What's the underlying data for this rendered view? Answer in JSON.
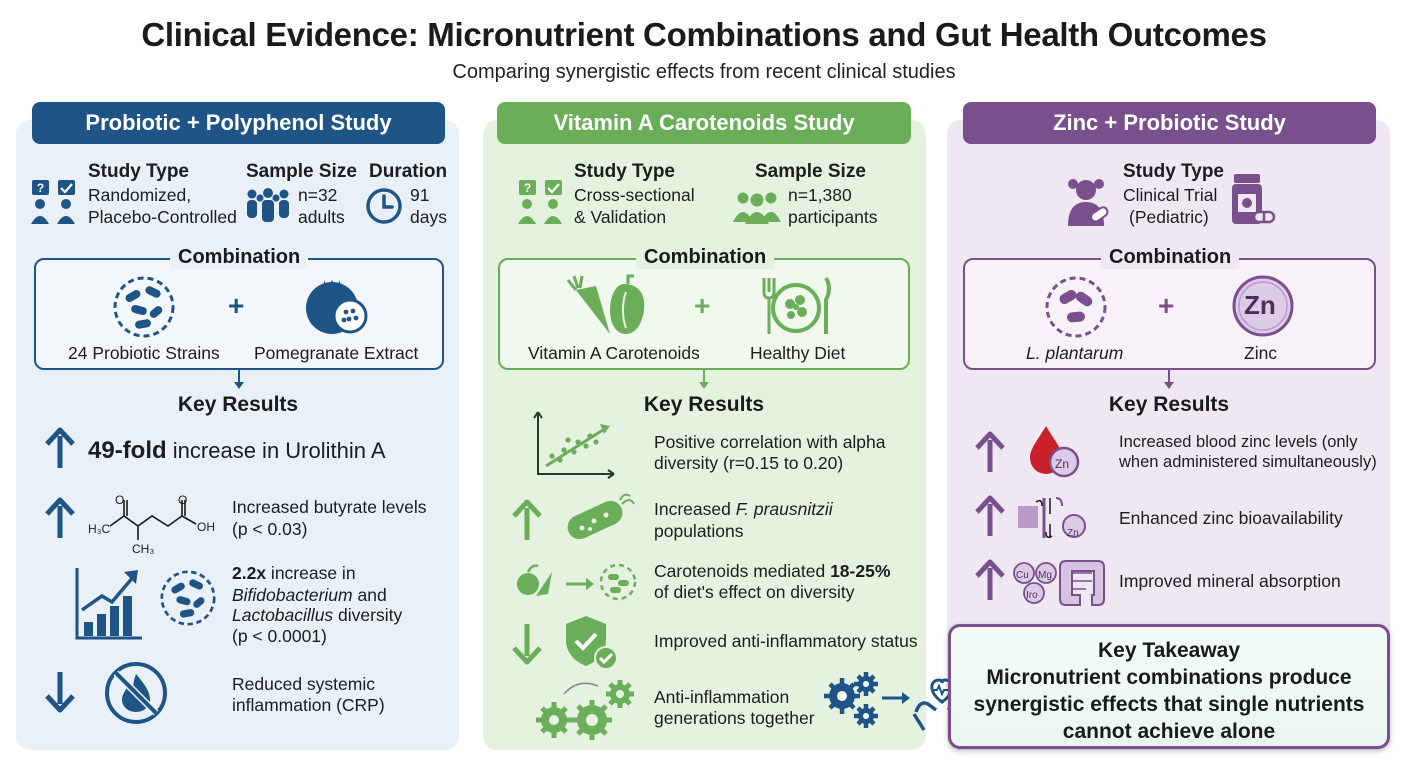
{
  "header": {
    "title": "Clinical Evidence: Micronutrient Combinations and Gut Health Outcomes",
    "subtitle": "Comparing synergistic effects from recent clinical studies"
  },
  "colors": {
    "blue": "#1f5487",
    "green": "#6aae5a",
    "purple": "#7a4f8e"
  },
  "labels": {
    "study_type": "Study Type",
    "sample_size": "Sample Size",
    "duration": "Duration",
    "combination": "Combination",
    "key_results": "Key Results",
    "plus": "+"
  },
  "study1": {
    "title": "Probiotic + Polyphenol Study",
    "type_line1": "Randomized,",
    "type_line2": "Placebo-Controlled",
    "sample_line1": "n=32",
    "sample_line2": "adults",
    "duration_line1": "91",
    "duration_line2": "days",
    "combo_left": "24 Probiotic Strains",
    "combo_right": "Pomegranate Extract",
    "r1_bold": "49-fold",
    "r1_text": " increase in Urolithin A",
    "r2_line1": "Increased butyrate levels",
    "r2_line2": "(p < 0.03)",
    "r3_bold": "2.2x",
    "r3_text": " increase in",
    "r3_line2a": "Bifidobacterium",
    "r3_line2b": " and",
    "r3_line3a": "Lactobacillus",
    "r3_line3b": " diversity",
    "r3_line4": "(p < 0.0001)",
    "r4_line1": "Reduced systemic",
    "r4_line2": "inflammation (CRP)",
    "chem_o1": "O",
    "chem_o2": "O",
    "chem_h3c": "H₃C",
    "chem_oh": "OH",
    "chem_ch3": "CH₃"
  },
  "study2": {
    "title": "Vitamin A Carotenoids Study",
    "type_line1": "Cross-sectional",
    "type_line2": "& Validation",
    "sample_line1": "n=1,380",
    "sample_line2": "participants",
    "combo_left": "Vitamin A Carotenoids",
    "combo_right": "Healthy Diet",
    "r1_line1": "Positive correlation with alpha",
    "r1_line2": "diversity (r=0.15 to 0.20)",
    "r2_line1a": "Increased ",
    "r2_line1b": "F. prausnitzii",
    "r2_line2": "populations",
    "r3_line1a": "Carotenoids mediated ",
    "r3_line1b": "18-25%",
    "r3_line2": "of diet's effect on diversity",
    "r4_line1": "Improved anti-inflammatory status",
    "r5_line1": "Anti-inflammation",
    "r5_line2": "generations together"
  },
  "study3": {
    "title": "Zinc + Probiotic Study",
    "type_line1": "Clinical Trial",
    "type_line2": "(Pediatric)",
    "combo_left": "L. plantarum",
    "combo_right": "Zinc",
    "zn_symbol": "Zn",
    "r1_line1": "Increased blood zinc levels (only",
    "r1_line2": "when administered simultaneously)",
    "r2_line1": "Enhanced zinc bioavailability",
    "r3_line1": "Improved mineral absorption",
    "minerals": [
      "Cu",
      "Mg",
      "Iro"
    ]
  },
  "takeaway": {
    "title": "Key Takeaway",
    "line1": "Micronutrient combinations produce",
    "line2": "synergistic effects that single nutrients",
    "line3": "cannot achieve alone"
  }
}
